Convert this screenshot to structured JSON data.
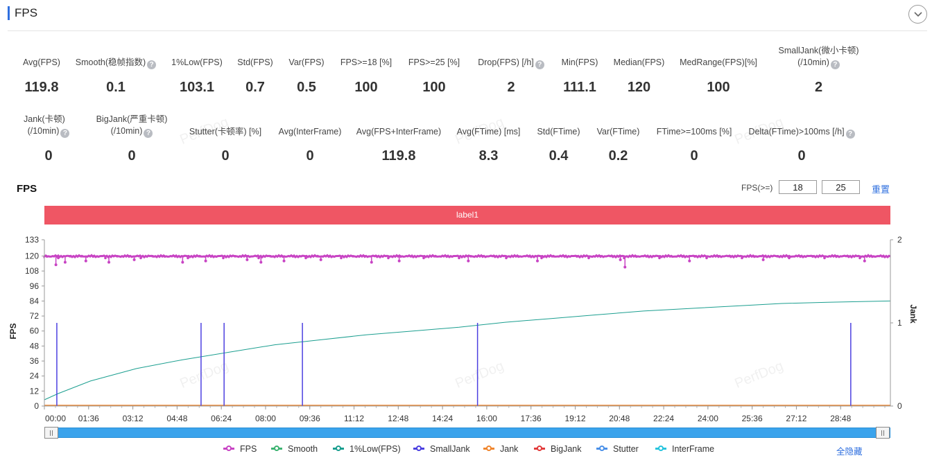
{
  "header": {
    "title": "FPS"
  },
  "metrics": {
    "row1": [
      {
        "label": "Avg(FPS)",
        "value": "119.8",
        "help": false
      },
      {
        "label": "Smooth(稳帧指数)",
        "value": "0.1",
        "help": true
      },
      {
        "label": "1%Low(FPS)",
        "value": "103.1",
        "help": false
      },
      {
        "label": "Std(FPS)",
        "value": "0.7",
        "help": false
      },
      {
        "label": "Var(FPS)",
        "value": "0.5",
        "help": false
      },
      {
        "label": "FPS>=18 [%]",
        "value": "100",
        "help": false
      },
      {
        "label": "FPS>=25 [%]",
        "value": "100",
        "help": false
      },
      {
        "label": "Drop(FPS) [/h]",
        "value": "2",
        "help": true
      },
      {
        "label": "Min(FPS)",
        "value": "111.1",
        "help": false
      },
      {
        "label": "Median(FPS)",
        "value": "120",
        "help": false
      },
      {
        "label": "MedRange(FPS)[%]",
        "value": "100",
        "help": false
      },
      {
        "label": "SmallJank(微小卡顿)",
        "label2": "(/10min)",
        "value": "2",
        "help": true
      }
    ],
    "row2": [
      {
        "label": "Jank(卡顿)",
        "label2": "(/10min)",
        "value": "0",
        "help": true
      },
      {
        "label": "BigJank(严重卡顿)",
        "label2": "(/10min)",
        "value": "0",
        "help": true
      },
      {
        "label": "Stutter(卡顿率) [%]",
        "value": "0",
        "help": false
      },
      {
        "label": "Avg(InterFrame)",
        "value": "0",
        "help": false
      },
      {
        "label": "Avg(FPS+InterFrame)",
        "value": "119.8",
        "help": false
      },
      {
        "label": "Avg(FTime) [ms]",
        "value": "8.3",
        "help": false
      },
      {
        "label": "Std(FTime)",
        "value": "0.4",
        "help": false
      },
      {
        "label": "Var(FTime)",
        "value": "0.2",
        "help": false
      },
      {
        "label": "FTime>=100ms [%]",
        "value": "0",
        "help": false
      },
      {
        "label": "Delta(FTime)>100ms [/h]",
        "value": "0",
        "help": true
      }
    ]
  },
  "chart_controls": {
    "title": "FPS",
    "filter_label": "FPS(>=)",
    "threshold1": "18",
    "threshold2": "25",
    "reset_label": "重置",
    "label_bar": "label1"
  },
  "watermark": "PerfDog",
  "chart_data": {
    "type": "line",
    "ylabel": "FPS",
    "y2label": "Jank",
    "y_ticks": [
      0,
      12,
      24,
      36,
      48,
      60,
      72,
      84,
      96,
      108,
      120,
      133
    ],
    "y_range": [
      0,
      133
    ],
    "y2_ticks": [
      0,
      1,
      2
    ],
    "y2_range": [
      0,
      2
    ],
    "x_ticks": [
      "00:00",
      "01:36",
      "03:12",
      "04:48",
      "06:24",
      "08:00",
      "09:36",
      "11:12",
      "12:48",
      "14:24",
      "16:00",
      "17:36",
      "19:12",
      "20:48",
      "22:24",
      "24:00",
      "25:36",
      "27:12",
      "28:48"
    ],
    "x_range_seconds": [
      0,
      1836
    ],
    "series": [
      {
        "name": "FPS",
        "color": "#c844c4",
        "axis": "left",
        "base": 119.8,
        "dips": [
          {
            "t": 25,
            "v": 113
          },
          {
            "t": 45,
            "v": 115
          },
          {
            "t": 90,
            "v": 116
          },
          {
            "t": 140,
            "v": 115
          },
          {
            "t": 195,
            "v": 117
          },
          {
            "t": 300,
            "v": 115
          },
          {
            "t": 350,
            "v": 116
          },
          {
            "t": 440,
            "v": 117
          },
          {
            "t": 470,
            "v": 115
          },
          {
            "t": 520,
            "v": 116
          },
          {
            "t": 600,
            "v": 117
          },
          {
            "t": 710,
            "v": 115
          },
          {
            "t": 770,
            "v": 116
          },
          {
            "t": 920,
            "v": 116
          },
          {
            "t": 1070,
            "v": 116
          },
          {
            "t": 1250,
            "v": 117
          },
          {
            "t": 1260,
            "v": 111.1
          },
          {
            "t": 1400,
            "v": 116
          },
          {
            "t": 1560,
            "v": 117
          },
          {
            "t": 1780,
            "v": 116
          }
        ]
      },
      {
        "name": "Smooth",
        "color": "#3cb371",
        "axis": "right",
        "values_note": "near 0"
      },
      {
        "name": "1%Low(FPS)",
        "color": "#1a9e8f",
        "axis": "left",
        "points": [
          [
            0,
            5
          ],
          [
            30,
            10
          ],
          [
            100,
            20
          ],
          [
            200,
            30
          ],
          [
            300,
            37
          ],
          [
            400,
            43
          ],
          [
            500,
            49
          ],
          [
            600,
            53
          ],
          [
            700,
            57
          ],
          [
            800,
            60
          ],
          [
            900,
            63
          ],
          [
            1000,
            67
          ],
          [
            1100,
            70
          ],
          [
            1200,
            73
          ],
          [
            1300,
            76
          ],
          [
            1400,
            78
          ],
          [
            1500,
            80
          ],
          [
            1600,
            82
          ],
          [
            1700,
            83
          ],
          [
            1836,
            84
          ]
        ]
      },
      {
        "name": "SmallJank",
        "color": "#4b3fe0",
        "axis": "right",
        "spikes": [
          27,
          340,
          390,
          560,
          940,
          1750
        ]
      },
      {
        "name": "Jank",
        "color": "#f0862e",
        "axis": "right"
      },
      {
        "name": "BigJank",
        "color": "#e23b3b",
        "axis": "right"
      },
      {
        "name": "Stutter",
        "color": "#4a90e8",
        "axis": "right"
      },
      {
        "name": "InterFrame",
        "color": "#27c4dd",
        "axis": "right"
      }
    ]
  },
  "legend": [
    {
      "name": "FPS",
      "color": "#c844c4"
    },
    {
      "name": "Smooth",
      "color": "#3cb371"
    },
    {
      "name": "1%Low(FPS)",
      "color": "#1a9e8f"
    },
    {
      "name": "SmallJank",
      "color": "#4b3fe0"
    },
    {
      "name": "Jank",
      "color": "#f0862e"
    },
    {
      "name": "BigJank",
      "color": "#e23b3b"
    },
    {
      "name": "Stutter",
      "color": "#4a90e8"
    },
    {
      "name": "InterFrame",
      "color": "#27c4dd"
    }
  ],
  "hide_all_label": "全隐藏"
}
